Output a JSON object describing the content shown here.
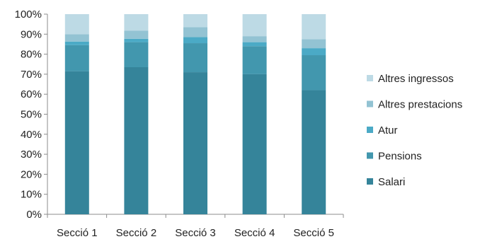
{
  "chart_data": {
    "type": "bar",
    "stacked": true,
    "percent_stacked": true,
    "categories": [
      "Secció 1",
      "Secció 2",
      "Secció 3",
      "Secció 4",
      "Secció 5"
    ],
    "series": [
      {
        "name": "Salari",
        "color": "#35849A",
        "values": [
          71.5,
          73.5,
          71.0,
          70.0,
          62.0
        ]
      },
      {
        "name": "Pensions",
        "color": "#4297AE",
        "values": [
          13.0,
          12.5,
          14.5,
          14.0,
          17.5
        ]
      },
      {
        "name": "Atur",
        "color": "#4BAAC6",
        "values": [
          1.8,
          1.7,
          3.0,
          2.0,
          3.5
        ]
      },
      {
        "name": "Altres prestacions",
        "color": "#93C3D3",
        "values": [
          3.7,
          4.0,
          5.0,
          3.0,
          4.5
        ]
      },
      {
        "name": "Altres ingressos",
        "color": "#BDDAE5",
        "values": [
          10.0,
          8.3,
          6.5,
          11.0,
          12.5
        ]
      }
    ],
    "y_ticks": [
      "0%",
      "10%",
      "20%",
      "30%",
      "40%",
      "50%",
      "60%",
      "70%",
      "80%",
      "90%",
      "100%"
    ],
    "ylim": [
      0,
      100
    ],
    "grid": false,
    "legend": "right"
  }
}
